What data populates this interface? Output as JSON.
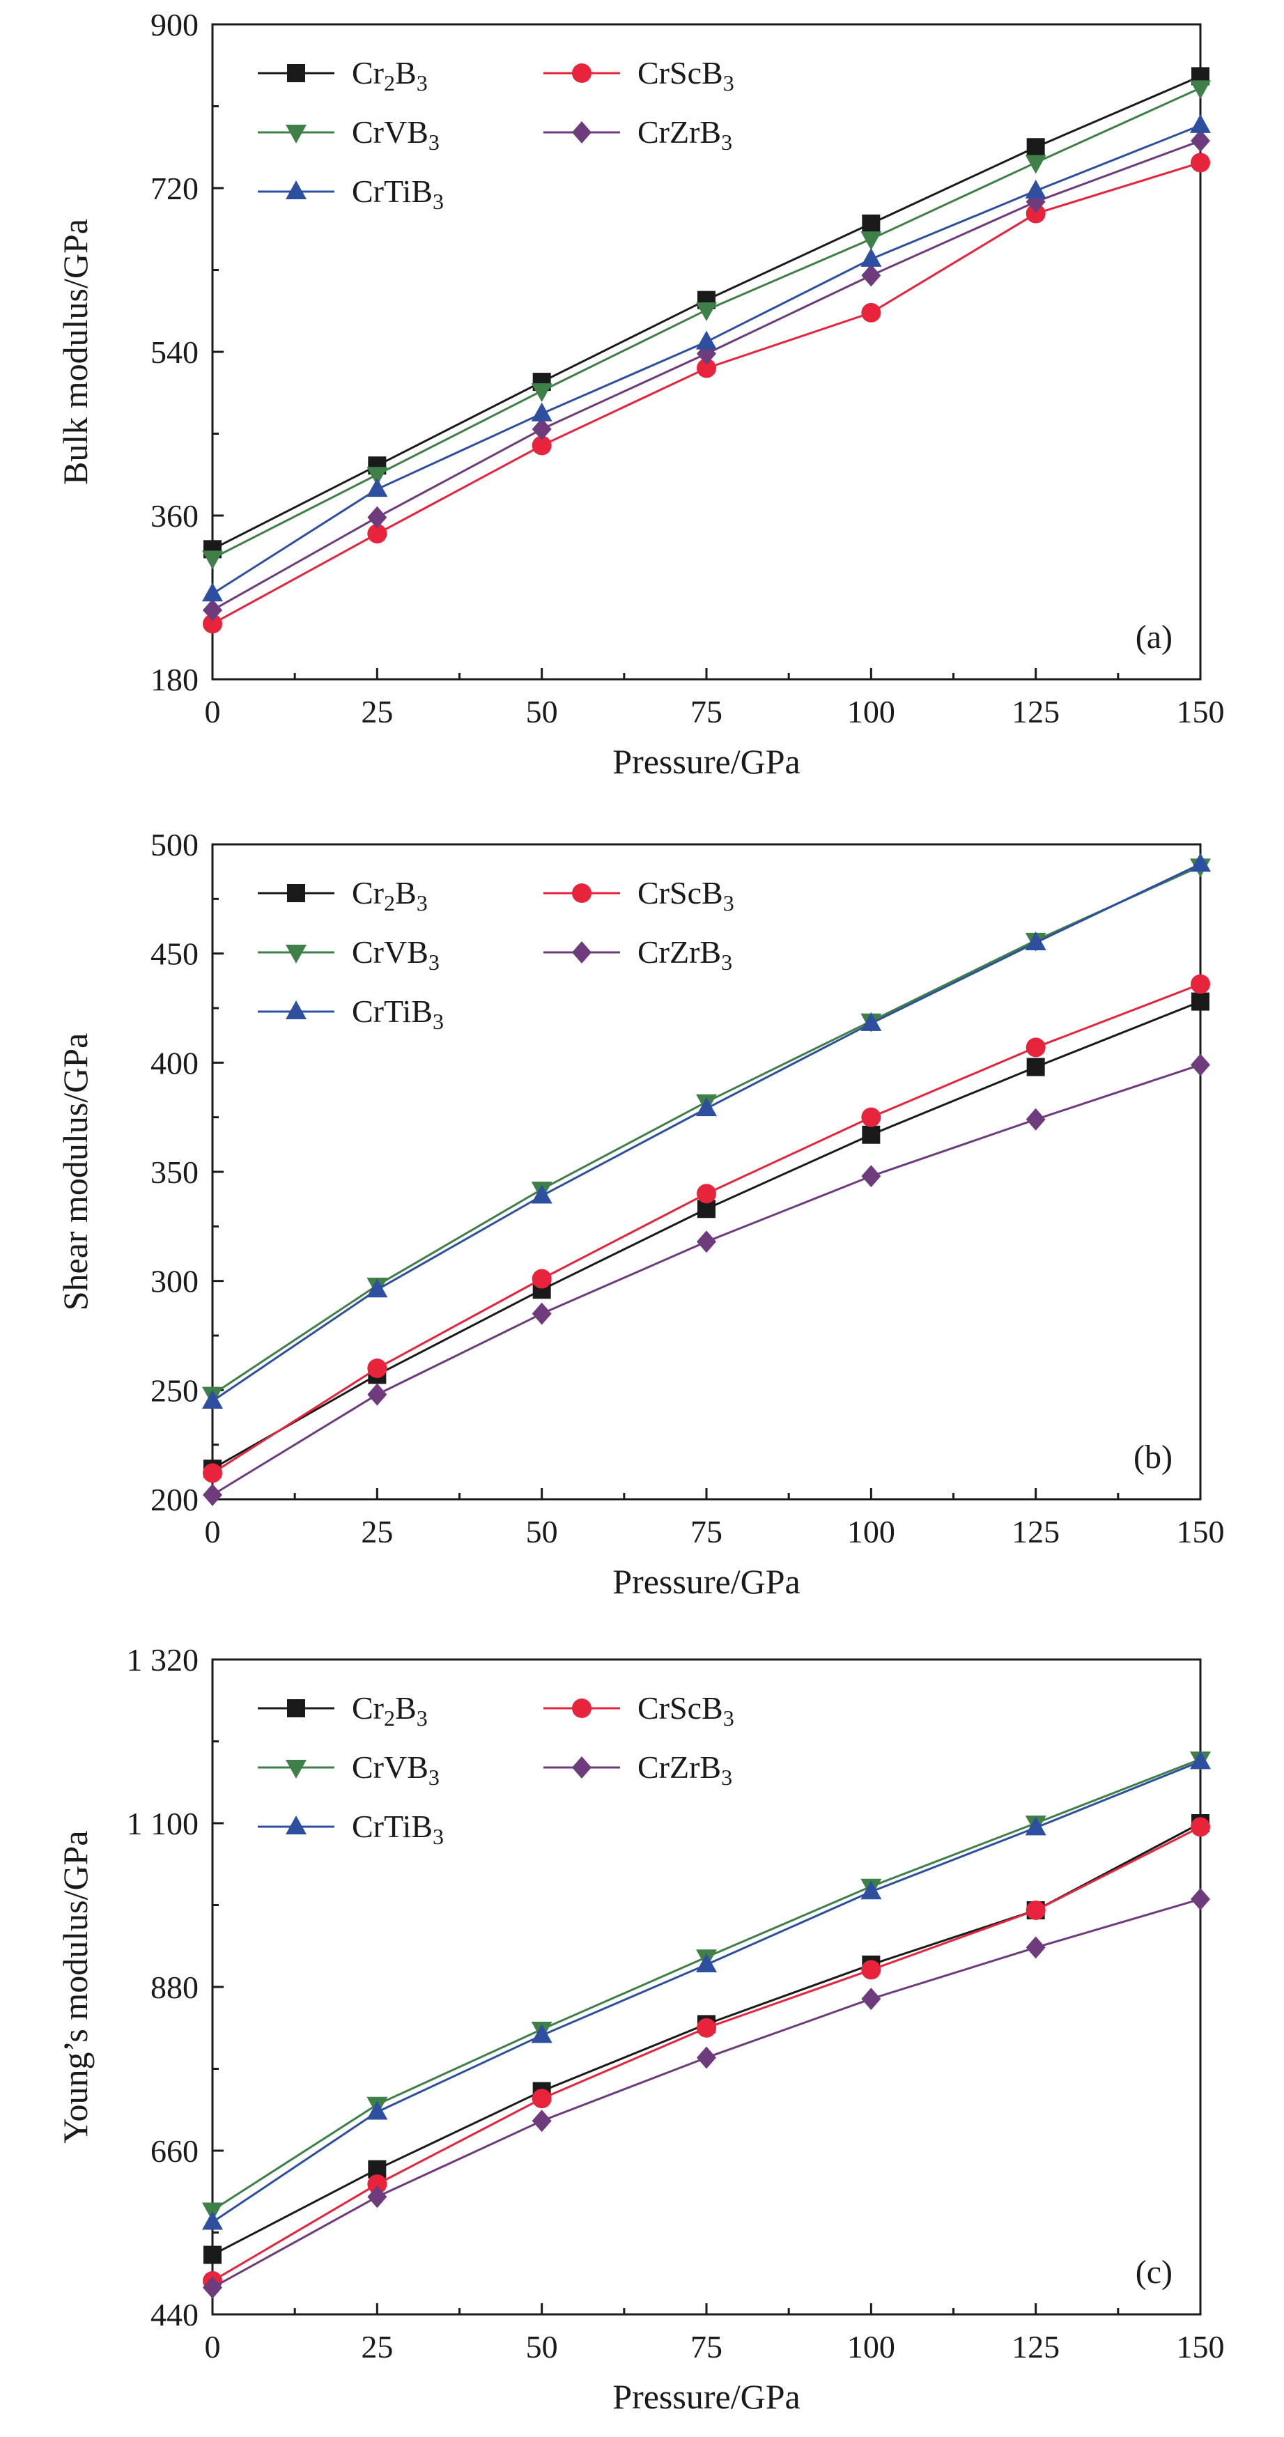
{
  "chart_data": [
    {
      "type": "line",
      "panel_tag": "(a)",
      "xlabel": "Pressure/GPa",
      "ylabel": "Bulk modulus/GPa",
      "x": [
        0,
        25,
        50,
        75,
        100,
        125,
        150
      ],
      "xticks": [
        "0",
        "25",
        "50",
        "75",
        "100",
        "125",
        "150"
      ],
      "xlim": [
        0,
        150
      ],
      "ylim": [
        180,
        900
      ],
      "yticks": [
        180,
        360,
        540,
        720,
        900
      ],
      "ytick_labels": [
        "180",
        "360",
        "540",
        "720",
        "900"
      ],
      "grid": false,
      "legend_position": "top-left",
      "series": [
        {
          "key": "Cr2B3",
          "name": [
            "Cr",
            "2",
            "B",
            "3"
          ],
          "values": [
            323,
            415,
            507,
            597,
            681,
            765,
            843
          ],
          "color": "#1a1a1a",
          "marker": "square"
        },
        {
          "key": "CrScB3",
          "name": [
            "CrScB",
            "3"
          ],
          "values": [
            241,
            340,
            437,
            522,
            583,
            692,
            748
          ],
          "color": "#e8243c",
          "marker": "circle"
        },
        {
          "key": "CrVB3",
          "name": [
            "CrVB",
            "3"
          ],
          "values": [
            313,
            405,
            497,
            586,
            664,
            748,
            830
          ],
          "color": "#3f7f48",
          "marker": "triangle-down"
        },
        {
          "key": "CrZrB3",
          "name": [
            "CrZrB",
            "3"
          ],
          "values": [
            256,
            358,
            455,
            538,
            624,
            705,
            772
          ],
          "color": "#6e3b7c",
          "marker": "diamond"
        },
        {
          "key": "CrTiB3",
          "name": [
            "CrTiB",
            "3"
          ],
          "values": [
            274,
            389,
            472,
            551,
            642,
            717,
            789
          ],
          "color": "#2e4fa0",
          "marker": "triangle-up"
        }
      ]
    },
    {
      "type": "line",
      "panel_tag": "(b)",
      "xlabel": "Pressure/GPa",
      "ylabel": "Shear modulus/GPa",
      "x": [
        0,
        25,
        50,
        75,
        100,
        125,
        150
      ],
      "xticks": [
        "0",
        "25",
        "50",
        "75",
        "100",
        "125",
        "150"
      ],
      "xlim": [
        0,
        150
      ],
      "ylim": [
        200,
        500
      ],
      "yticks": [
        200,
        250,
        300,
        350,
        400,
        450,
        500
      ],
      "ytick_labels": [
        "200",
        "250",
        "300",
        "350",
        "400",
        "450",
        "500"
      ],
      "grid": false,
      "legend_position": "top-left",
      "series": [
        {
          "key": "Cr2B3",
          "name": [
            "Cr",
            "2",
            "B",
            "3"
          ],
          "values": [
            214,
            257,
            296,
            333,
            367,
            398,
            428
          ],
          "color": "#1a1a1a",
          "marker": "square"
        },
        {
          "key": "CrScB3",
          "name": [
            "CrScB",
            "3"
          ],
          "values": [
            212,
            260,
            301,
            340,
            375,
            407,
            436
          ],
          "color": "#e8243c",
          "marker": "circle"
        },
        {
          "key": "CrVB3",
          "name": [
            "CrVB",
            "3"
          ],
          "values": [
            248,
            298,
            342,
            382,
            419,
            456,
            490
          ],
          "color": "#3f7f48",
          "marker": "triangle-down"
        },
        {
          "key": "CrZrB3",
          "name": [
            "CrZrB",
            "3"
          ],
          "values": [
            202,
            248,
            285,
            318,
            348,
            374,
            399
          ],
          "color": "#6e3b7c",
          "marker": "diamond"
        },
        {
          "key": "CrTiB3",
          "name": [
            "CrTiB",
            "3"
          ],
          "values": [
            245,
            296,
            339,
            379,
            418,
            455,
            491
          ],
          "color": "#2e4fa0",
          "marker": "triangle-up"
        }
      ]
    },
    {
      "type": "line",
      "panel_tag": "(c)",
      "xlabel": "Pressure/GPa",
      "ylabel": "Young’s modulus/GPa",
      "x": [
        0,
        25,
        50,
        75,
        100,
        125,
        150
      ],
      "xticks": [
        "0",
        "25",
        "50",
        "75",
        "100",
        "125",
        "150"
      ],
      "xlim": [
        0,
        150
      ],
      "ylim": [
        440,
        1320
      ],
      "yticks": [
        440,
        660,
        880,
        1100,
        1320
      ],
      "ytick_labels": [
        "440",
        "660",
        "880",
        "1 100",
        "1 320"
      ],
      "grid": false,
      "legend_position": "top-left",
      "series": [
        {
          "key": "Cr2B3",
          "name": [
            "Cr",
            "2",
            "B",
            "3"
          ],
          "values": [
            520,
            635,
            740,
            830,
            910,
            983,
            1100
          ],
          "color": "#1a1a1a",
          "marker": "square"
        },
        {
          "key": "CrScB3",
          "name": [
            "CrScB",
            "3"
          ],
          "values": [
            485,
            615,
            730,
            825,
            903,
            983,
            1095
          ],
          "color": "#e8243c",
          "marker": "circle"
        },
        {
          "key": "CrVB3",
          "name": [
            "CrVB",
            "3"
          ],
          "values": [
            580,
            722,
            823,
            920,
            1015,
            1100,
            1186
          ],
          "color": "#3f7f48",
          "marker": "triangle-down"
        },
        {
          "key": "CrZrB3",
          "name": [
            "CrZrB",
            "3"
          ],
          "values": [
            476,
            598,
            700,
            785,
            864,
            933,
            998
          ],
          "color": "#6e3b7c",
          "marker": "diamond"
        },
        {
          "key": "CrTiB3",
          "name": [
            "CrTiB",
            "3"
          ],
          "values": [
            564,
            712,
            815,
            910,
            1008,
            1094,
            1183
          ],
          "color": "#2e4fa0",
          "marker": "triangle-up"
        }
      ]
    }
  ]
}
